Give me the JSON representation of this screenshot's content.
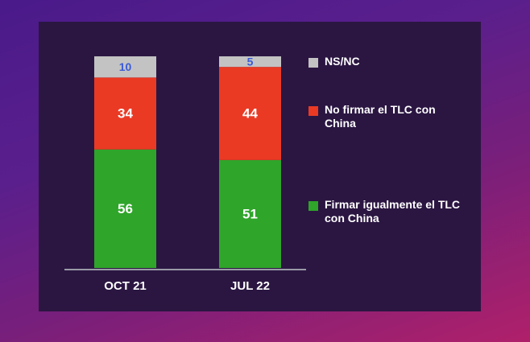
{
  "chart_data": {
    "type": "stacked_bar",
    "categories": [
      "OCT 21",
      "JUL 22"
    ],
    "series": [
      {
        "name": "Firmar igualmente el TLC con China",
        "color": "#2fa52a",
        "label_color": "#ffffff",
        "values": [
          56,
          51
        ]
      },
      {
        "name": "No firmar el TLC con China",
        "color": "#ea3a24",
        "label_color": "#ffffff",
        "values": [
          34,
          44
        ]
      },
      {
        "name": "NS/NC",
        "color": "#c3c3c3",
        "label_color": "#3b5bd6",
        "values": [
          10,
          5
        ]
      }
    ]
  }
}
